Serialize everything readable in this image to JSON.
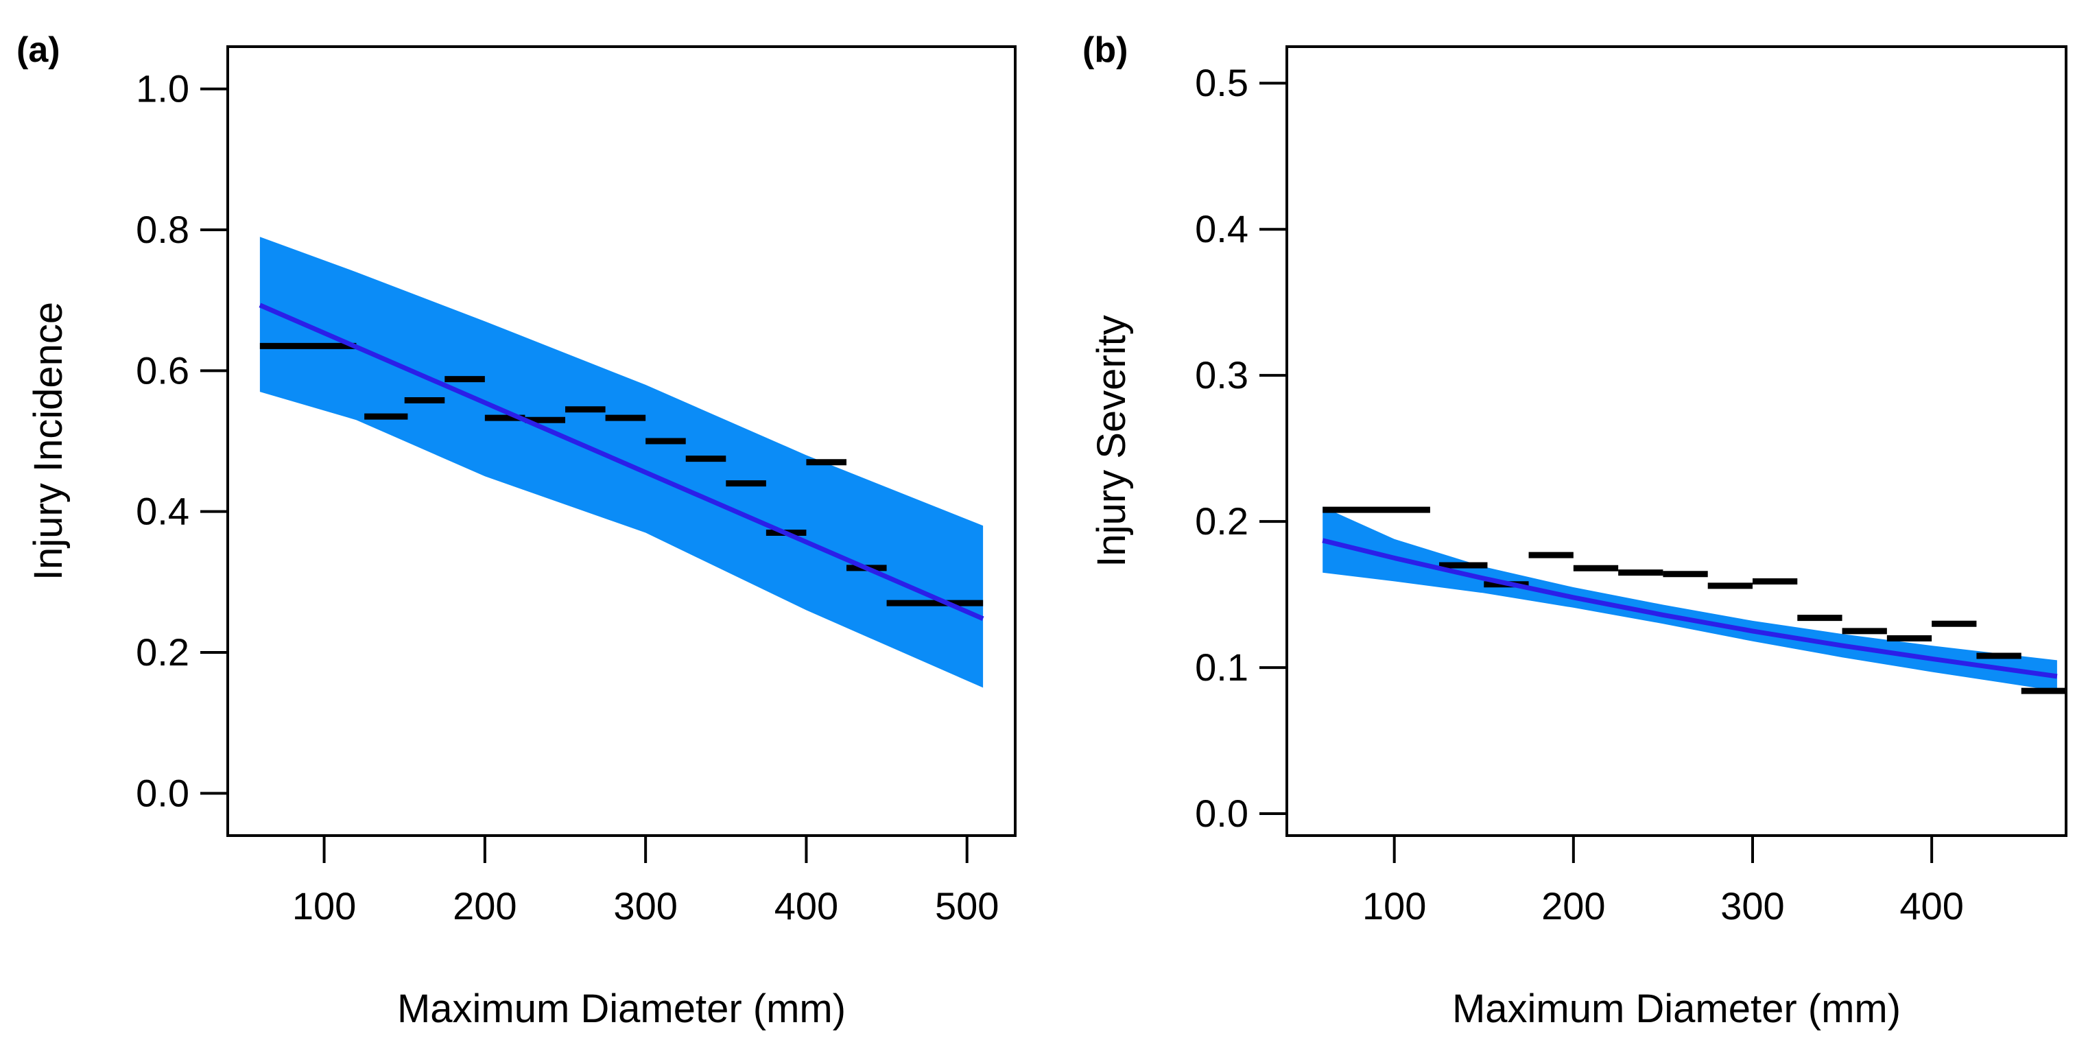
{
  "chart_data": [
    {
      "type": "line",
      "panel_label": "(a)",
      "xlabel": "Maximum Diameter (mm)",
      "ylabel": "Injury Incidence",
      "xlim": [
        40,
        530
      ],
      "ylim": [
        -0.06,
        1.06
      ],
      "xticks": [
        100,
        200,
        300,
        400,
        500
      ],
      "yticks": [
        0.0,
        0.2,
        0.4,
        0.6,
        0.8,
        1.0
      ],
      "xtick_labels": [
        "100",
        "200",
        "300",
        "400",
        "500"
      ],
      "ytick_labels": [
        "0.0",
        "0.2",
        "0.4",
        "0.6",
        "0.8",
        "1.0"
      ],
      "fit_line": {
        "name": "fitted",
        "x": [
          60,
          510
        ],
        "y": [
          0.693,
          0.248
        ],
        "color": "#2b1fe8"
      },
      "ci_band": {
        "x": [
          60,
          120,
          200,
          300,
          400,
          510
        ],
        "upper": [
          0.79,
          0.74,
          0.67,
          0.58,
          0.48,
          0.38
        ],
        "lower": [
          0.57,
          0.53,
          0.45,
          0.37,
          0.26,
          0.15
        ],
        "color": "#0b8cf7"
      },
      "observed_bins": [
        {
          "x0": 60,
          "x1": 120,
          "y": 0.635
        },
        {
          "x0": 125,
          "x1": 152,
          "y": 0.535
        },
        {
          "x0": 150,
          "x1": 175,
          "y": 0.558
        },
        {
          "x0": 175,
          "x1": 200,
          "y": 0.588
        },
        {
          "x0": 200,
          "x1": 225,
          "y": 0.533
        },
        {
          "x0": 225,
          "x1": 250,
          "y": 0.53
        },
        {
          "x0": 250,
          "x1": 275,
          "y": 0.545
        },
        {
          "x0": 275,
          "x1": 300,
          "y": 0.533
        },
        {
          "x0": 300,
          "x1": 325,
          "y": 0.5
        },
        {
          "x0": 325,
          "x1": 350,
          "y": 0.475
        },
        {
          "x0": 350,
          "x1": 375,
          "y": 0.44
        },
        {
          "x0": 375,
          "x1": 400,
          "y": 0.37
        },
        {
          "x0": 400,
          "x1": 425,
          "y": 0.47
        },
        {
          "x0": 425,
          "x1": 450,
          "y": 0.32
        },
        {
          "x0": 450,
          "x1": 510,
          "y": 0.27
        }
      ]
    },
    {
      "type": "line",
      "panel_label": "(b)",
      "xlabel": "Maximum Diameter (mm)",
      "ylabel": "Injury Severity",
      "xlim": [
        40,
        475
      ],
      "ylim": [
        -0.015,
        0.525
      ],
      "xticks": [
        100,
        200,
        300,
        400
      ],
      "yticks": [
        0.0,
        0.1,
        0.2,
        0.3,
        0.4,
        0.5
      ],
      "xtick_labels": [
        "100",
        "200",
        "300",
        "400"
      ],
      "ytick_labels": [
        "0.0",
        "0.1",
        "0.2",
        "0.3",
        "0.4",
        "0.5"
      ],
      "fit_line": {
        "name": "fitted",
        "x": [
          60,
          100,
          150,
          200,
          250,
          300,
          350,
          400,
          470
        ],
        "y": [
          0.187,
          0.175,
          0.161,
          0.148,
          0.136,
          0.125,
          0.115,
          0.106,
          0.094
        ],
        "color": "#2b1fe8"
      },
      "ci_band": {
        "x": [
          60,
          100,
          150,
          200,
          250,
          300,
          350,
          400,
          470
        ],
        "upper": [
          0.21,
          0.188,
          0.169,
          0.155,
          0.143,
          0.132,
          0.123,
          0.115,
          0.105
        ],
        "lower": [
          0.165,
          0.159,
          0.151,
          0.141,
          0.13,
          0.118,
          0.107,
          0.097,
          0.084
        ],
        "color": "#0b8cf7"
      },
      "observed_bins": [
        {
          "x0": 60,
          "x1": 120,
          "y": 0.208
        },
        {
          "x0": 125,
          "x1": 152,
          "y": 0.17
        },
        {
          "x0": 150,
          "x1": 175,
          "y": 0.157
        },
        {
          "x0": 175,
          "x1": 200,
          "y": 0.177
        },
        {
          "x0": 200,
          "x1": 225,
          "y": 0.168
        },
        {
          "x0": 225,
          "x1": 250,
          "y": 0.165
        },
        {
          "x0": 250,
          "x1": 275,
          "y": 0.164
        },
        {
          "x0": 275,
          "x1": 300,
          "y": 0.156
        },
        {
          "x0": 300,
          "x1": 325,
          "y": 0.159
        },
        {
          "x0": 325,
          "x1": 350,
          "y": 0.134
        },
        {
          "x0": 350,
          "x1": 375,
          "y": 0.125
        },
        {
          "x0": 375,
          "x1": 400,
          "y": 0.12
        },
        {
          "x0": 400,
          "x1": 425,
          "y": 0.13
        },
        {
          "x0": 425,
          "x1": 450,
          "y": 0.108
        },
        {
          "x0": 450,
          "x1": 475,
          "y": 0.084
        }
      ]
    }
  ]
}
